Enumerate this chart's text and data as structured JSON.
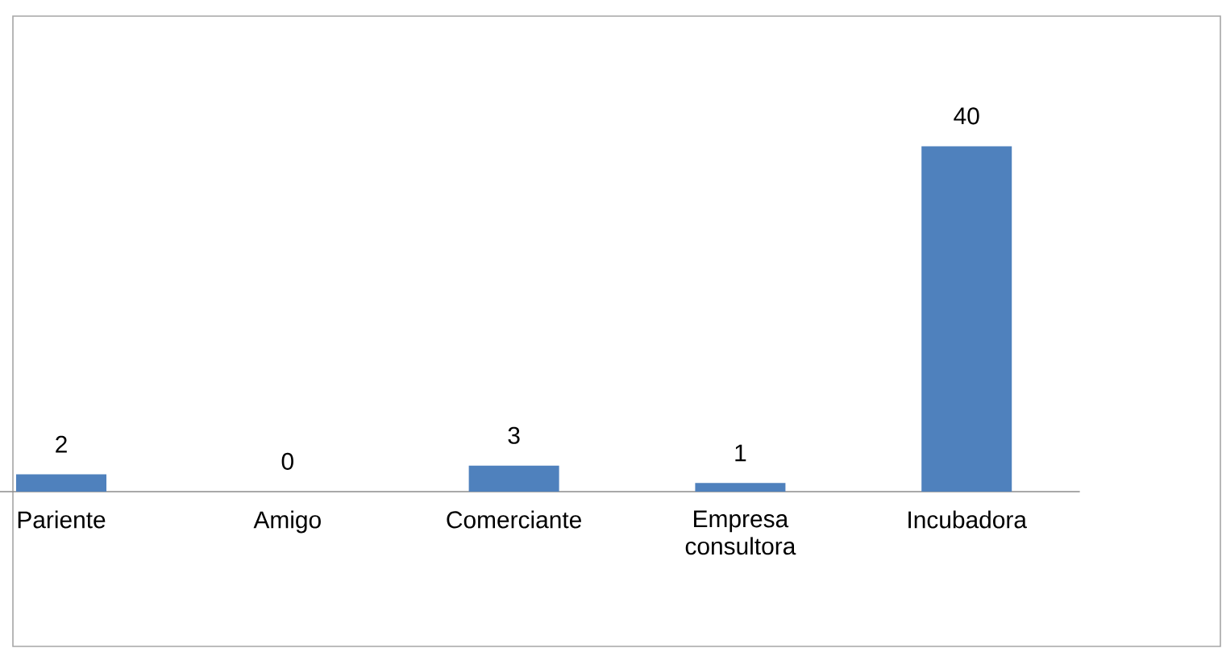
{
  "chart_data": {
    "type": "bar",
    "categories": [
      "Pariente",
      "Amigo",
      "Comerciante",
      "Empresa consultora",
      "Incubadora"
    ],
    "values": [
      2,
      0,
      3,
      1,
      40
    ],
    "color": "#4f81bd",
    "data_labels": true,
    "tick_labels": "x"
  }
}
